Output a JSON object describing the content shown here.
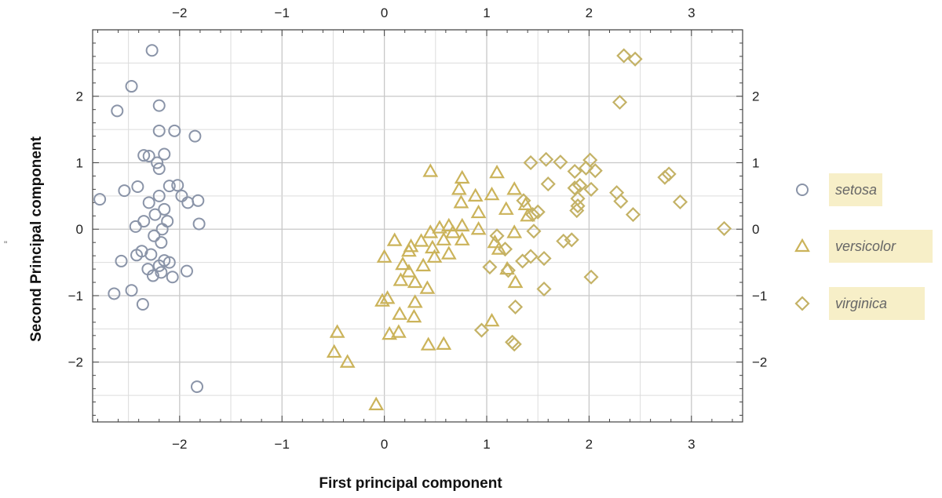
{
  "chart_data": {
    "type": "scatter",
    "title": "",
    "xlabel": "First principal component",
    "ylabel": "Second Principal component",
    "left_mark": "\"",
    "xlim": [
      -2.85,
      3.5
    ],
    "ylim": [
      -2.9,
      3.0
    ],
    "xticks": [
      -2,
      -1,
      0,
      1,
      2,
      3
    ],
    "yticks": [
      -2,
      -1,
      0,
      1,
      2
    ],
    "xtick_labels": [
      "−2",
      "−1",
      "0",
      "1",
      "2",
      "3"
    ],
    "ytick_labels": [
      "−2",
      "−1",
      "0",
      "1",
      "2"
    ],
    "grid": true,
    "legend_position": "right",
    "colors": {
      "setosa": "#8a94a8",
      "versicolor": "#cbb35a",
      "virginica": "#c4b266",
      "legend_box": "#f7efc8",
      "grid": "#cccccc",
      "frame": "#444444"
    },
    "series": [
      {
        "name": "setosa",
        "marker": "circle",
        "points": [
          [
            -2.27,
            2.69
          ],
          [
            -2.47,
            2.15
          ],
          [
            -2.61,
            1.78
          ],
          [
            -2.2,
            1.86
          ],
          [
            -1.85,
            1.4
          ],
          [
            -2.2,
            1.48
          ],
          [
            -2.05,
            1.48
          ],
          [
            -2.15,
            1.13
          ],
          [
            -2.35,
            1.11
          ],
          [
            -2.3,
            1.1
          ],
          [
            -2.22,
            1.0
          ],
          [
            -2.2,
            0.91
          ],
          [
            -2.1,
            0.65
          ],
          [
            -2.02,
            0.66
          ],
          [
            -2.41,
            0.64
          ],
          [
            -2.54,
            0.58
          ],
          [
            -2.2,
            0.5
          ],
          [
            -1.98,
            0.5
          ],
          [
            -2.78,
            0.45
          ],
          [
            -2.3,
            0.4
          ],
          [
            -1.82,
            0.43
          ],
          [
            -1.92,
            0.4
          ],
          [
            -2.15,
            0.3
          ],
          [
            -2.24,
            0.22
          ],
          [
            -2.35,
            0.12
          ],
          [
            -1.81,
            0.08
          ],
          [
            -2.12,
            0.12
          ],
          [
            -2.43,
            0.04
          ],
          [
            -2.17,
            0.0
          ],
          [
            -2.25,
            -0.1
          ],
          [
            -2.18,
            -0.2
          ],
          [
            -2.37,
            -0.33
          ],
          [
            -2.28,
            -0.38
          ],
          [
            -2.42,
            -0.39
          ],
          [
            -2.15,
            -0.47
          ],
          [
            -2.57,
            -0.48
          ],
          [
            -2.1,
            -0.5
          ],
          [
            -2.2,
            -0.55
          ],
          [
            -2.31,
            -0.6
          ],
          [
            -2.18,
            -0.65
          ],
          [
            -1.93,
            -0.63
          ],
          [
            -2.26,
            -0.7
          ],
          [
            -2.07,
            -0.72
          ],
          [
            -2.64,
            -0.97
          ],
          [
            -2.47,
            -0.92
          ],
          [
            -2.36,
            -1.13
          ],
          [
            -1.83,
            -2.37
          ]
        ]
      },
      {
        "name": "versicolor",
        "marker": "triangle",
        "points": [
          [
            0.45,
            0.87
          ],
          [
            1.1,
            0.85
          ],
          [
            0.76,
            0.77
          ],
          [
            0.73,
            0.6
          ],
          [
            1.27,
            0.6
          ],
          [
            0.89,
            0.5
          ],
          [
            1.05,
            0.52
          ],
          [
            0.75,
            0.4
          ],
          [
            1.38,
            0.37
          ],
          [
            0.92,
            0.25
          ],
          [
            1.19,
            0.3
          ],
          [
            1.4,
            0.2
          ],
          [
            0.63,
            0.05
          ],
          [
            0.76,
            0.05
          ],
          [
            0.54,
            0.02
          ],
          [
            0.92,
            0.0
          ],
          [
            0.45,
            -0.05
          ],
          [
            0.67,
            -0.05
          ],
          [
            1.27,
            -0.05
          ],
          [
            0.1,
            -0.17
          ],
          [
            0.36,
            -0.18
          ],
          [
            0.58,
            -0.16
          ],
          [
            0.76,
            -0.16
          ],
          [
            0.26,
            -0.26
          ],
          [
            0.47,
            -0.28
          ],
          [
            1.08,
            -0.2
          ],
          [
            0.24,
            -0.33
          ],
          [
            0.63,
            -0.37
          ],
          [
            0.0,
            -0.42
          ],
          [
            0.49,
            -0.42
          ],
          [
            1.12,
            -0.3
          ],
          [
            0.18,
            -0.53
          ],
          [
            0.38,
            -0.55
          ],
          [
            0.24,
            -0.64
          ],
          [
            0.16,
            -0.77
          ],
          [
            0.3,
            -0.8
          ],
          [
            1.2,
            -0.6
          ],
          [
            1.28,
            -0.8
          ],
          [
            0.42,
            -0.89
          ],
          [
            0.03,
            -1.04
          ],
          [
            -0.02,
            -1.08
          ],
          [
            0.3,
            -1.1
          ],
          [
            0.15,
            -1.28
          ],
          [
            0.29,
            -1.32
          ],
          [
            1.05,
            -1.38
          ],
          [
            -0.46,
            -1.55
          ],
          [
            -0.49,
            -1.85
          ],
          [
            0.14,
            -1.55
          ],
          [
            0.05,
            -1.58
          ],
          [
            0.43,
            -1.74
          ],
          [
            0.58,
            -1.73
          ],
          [
            -0.36,
            -2.0
          ],
          [
            -0.08,
            -2.64
          ]
        ]
      },
      {
        "name": "virginica",
        "marker": "diamond",
        "points": [
          [
            2.34,
            2.61
          ],
          [
            2.45,
            2.56
          ],
          [
            2.3,
            1.91
          ],
          [
            1.58,
            1.05
          ],
          [
            1.43,
            1.0
          ],
          [
            1.72,
            1.01
          ],
          [
            2.01,
            1.04
          ],
          [
            1.97,
            0.92
          ],
          [
            2.06,
            0.88
          ],
          [
            1.86,
            0.87
          ],
          [
            2.78,
            0.83
          ],
          [
            2.74,
            0.78
          ],
          [
            1.91,
            0.66
          ],
          [
            1.6,
            0.68
          ],
          [
            1.86,
            0.62
          ],
          [
            2.02,
            0.6
          ],
          [
            2.27,
            0.55
          ],
          [
            1.89,
            0.46
          ],
          [
            1.36,
            0.43
          ],
          [
            2.31,
            0.42
          ],
          [
            2.89,
            0.41
          ],
          [
            1.89,
            0.35
          ],
          [
            1.88,
            0.28
          ],
          [
            1.5,
            0.26
          ],
          [
            1.45,
            0.22
          ],
          [
            2.43,
            0.22
          ],
          [
            3.32,
            0.01
          ],
          [
            1.46,
            -0.03
          ],
          [
            1.1,
            -0.1
          ],
          [
            1.75,
            -0.18
          ],
          [
            1.83,
            -0.16
          ],
          [
            1.18,
            -0.3
          ],
          [
            1.43,
            -0.41
          ],
          [
            1.56,
            -0.44
          ],
          [
            1.35,
            -0.48
          ],
          [
            1.03,
            -0.57
          ],
          [
            1.21,
            -0.62
          ],
          [
            2.02,
            -0.72
          ],
          [
            1.56,
            -0.9
          ],
          [
            1.28,
            -1.17
          ],
          [
            0.95,
            -1.52
          ],
          [
            1.25,
            -1.7
          ],
          [
            1.27,
            -1.73
          ]
        ]
      }
    ]
  }
}
